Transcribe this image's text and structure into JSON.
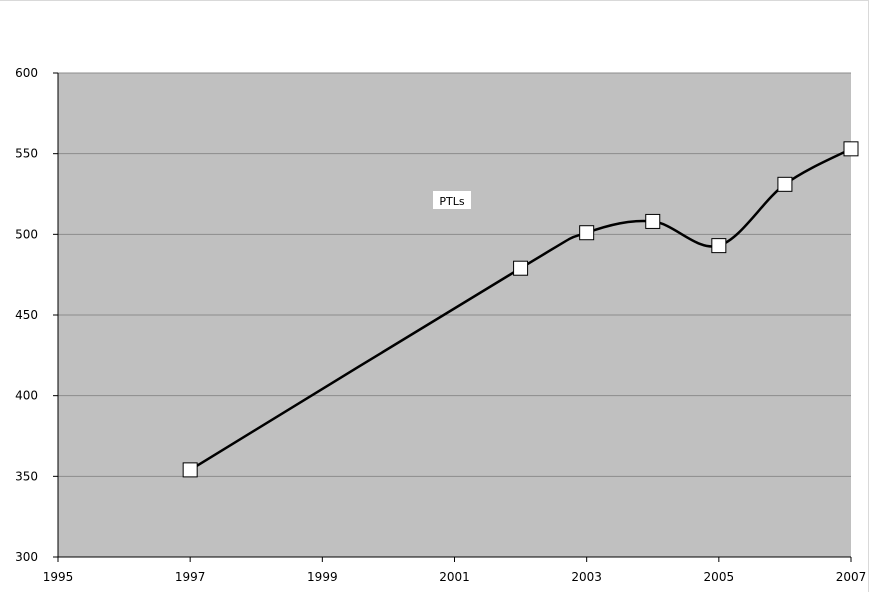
{
  "chart_data": {
    "type": "line",
    "title": "",
    "xlabel": "",
    "ylabel": "",
    "xlim": [
      1995,
      2007
    ],
    "ylim": [
      300,
      600
    ],
    "x_ticks": [
      1995,
      1997,
      1999,
      2001,
      2003,
      2005,
      2007
    ],
    "y_ticks": [
      300,
      350,
      400,
      450,
      500,
      550,
      600
    ],
    "grid": "horizontal",
    "legend": "none",
    "annotation": "PTLs",
    "series": [
      {
        "name": "PTLs",
        "smooth": true,
        "marker": "square",
        "x": [
          1997,
          2002,
          2003,
          2004,
          2005,
          2006,
          2007
        ],
        "y": [
          354,
          479,
          501,
          508,
          493,
          531,
          553
        ]
      }
    ],
    "colors": {
      "plot_background": "#c0c0c0",
      "gridline": "#8c8c8c",
      "line": "#000000",
      "marker_fill": "#ffffff",
      "marker_stroke": "#000000"
    }
  }
}
